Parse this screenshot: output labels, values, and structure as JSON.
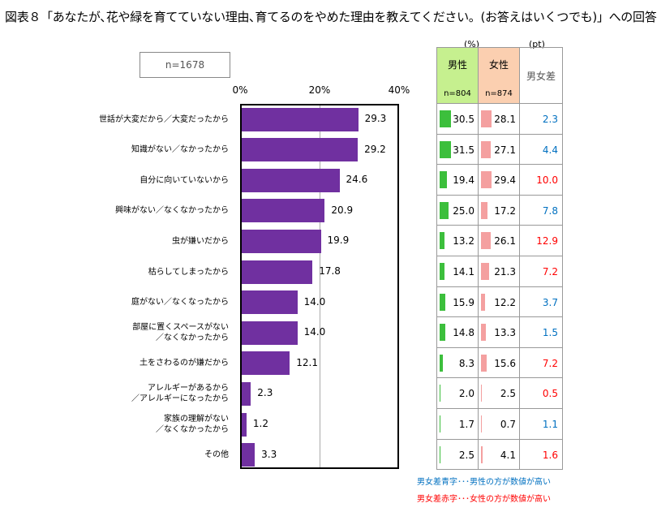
{
  "title": "図表８「あなたが､花や緑を育てていない理由､育てるのをやめた理由を教えてください。(お答えはいくつでも)」への回答",
  "sample_label": "n=1678",
  "table": {
    "unit_pct": "(%)",
    "unit_pt": "(pt)",
    "male": "男性",
    "male_n": "n=804",
    "female": "女性",
    "female_n": "n=874",
    "diff": "男女差"
  },
  "colors": {
    "bar": "#7030a0",
    "male": "#3cbf3c",
    "female": "#f4a0a0",
    "diff_male_higher": "#0070c0",
    "diff_female_higher": "#ff0000"
  },
  "notes": [
    {
      "text": "男女差青字･･･男性の方が数値が高い",
      "color": "#0070c0"
    },
    {
      "text": "男女差赤字･･･女性の方が数値が高い",
      "color": "#ff0000"
    }
  ],
  "chart_data": {
    "type": "bar",
    "orientation": "horizontal",
    "xlim": [
      0,
      40
    ],
    "xticks": [
      "0%",
      "20%",
      "40%"
    ],
    "grid": true,
    "categories": [
      "世話が大変だから／大変だったから",
      "知識がない／なかったから",
      "自分に向いていないから",
      "興味がない／なくなかったから",
      "虫が嫌いだから",
      "枯らしてしまったから",
      "庭がない／なくなったから",
      "部屋に置くスペースがない\n／なくなかったから",
      "土をさわるのが嫌だから",
      "アレルギーがあるから\n／アレルギーになったから",
      "家族の理解がない\n／なくなかったから",
      "その他"
    ],
    "values": [
      29.3,
      29.2,
      24.6,
      20.9,
      19.9,
      17.8,
      14.0,
      14.0,
      12.1,
      2.3,
      1.2,
      3.3
    ],
    "male": [
      30.5,
      31.5,
      19.4,
      25.0,
      13.2,
      14.1,
      15.9,
      14.8,
      8.3,
      2.0,
      1.7,
      2.5
    ],
    "female": [
      28.1,
      27.1,
      29.4,
      17.2,
      26.1,
      21.3,
      12.2,
      13.3,
      15.6,
      2.5,
      0.7,
      4.1
    ],
    "diff": [
      2.3,
      4.4,
      10.0,
      7.8,
      12.9,
      7.2,
      3.7,
      1.5,
      7.2,
      0.5,
      1.1,
      1.6
    ],
    "diff_higher": [
      "male",
      "male",
      "female",
      "male",
      "female",
      "female",
      "male",
      "male",
      "female",
      "female",
      "male",
      "female"
    ]
  }
}
